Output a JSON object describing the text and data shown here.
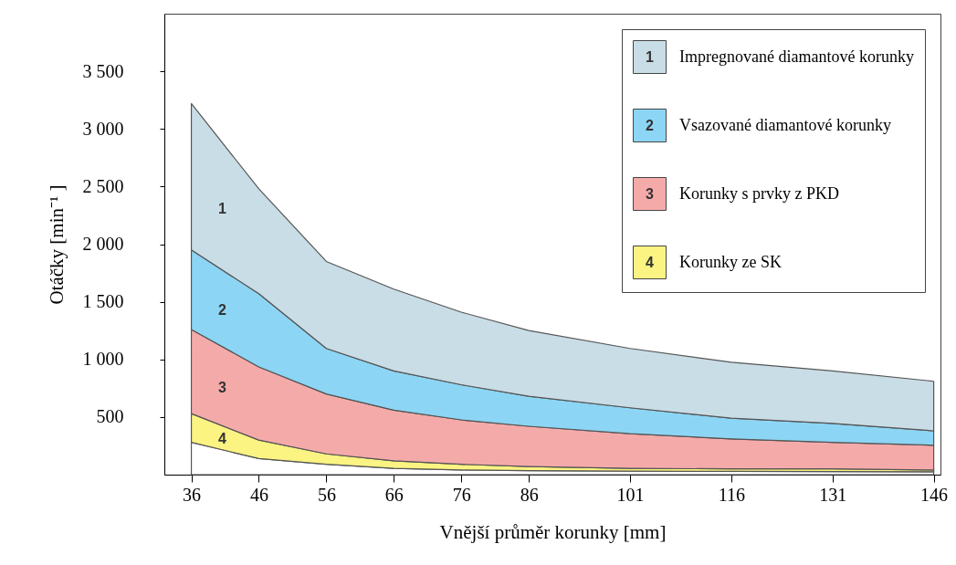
{
  "chart_data": {
    "type": "area",
    "stacked": true,
    "xlabel": "Vnější průměr korunky [mm]",
    "ylabel": "Otáčky [min⁻¹ ]",
    "x": [
      36,
      46,
      56,
      66,
      76,
      86,
      101,
      116,
      131,
      146
    ],
    "series": [
      {
        "color": "#ffffff",
        "values": [
          280,
          140,
          90,
          55,
          40,
          35,
          30,
          28,
          26,
          25
        ]
      },
      {
        "name": "Korunky ze SK",
        "color": "#fbf382",
        "values": [
          250,
          160,
          90,
          65,
          50,
          35,
          25,
          22,
          24,
          15
        ]
      },
      {
        "name": "Korunky s prvky z PKD",
        "color": "#f5aaaa",
        "values": [
          730,
          635,
          520,
          440,
          385,
          350,
          300,
          260,
          230,
          215
        ]
      },
      {
        "name": "Vsazované diamantové korunky",
        "color": "#8dd5f4",
        "values": [
          690,
          635,
          395,
          340,
          305,
          260,
          225,
          180,
          165,
          125
        ]
      },
      {
        "name": "Impregnované diamantové korunky",
        "color": "#c9dde6",
        "values": [
          1270,
          910,
          755,
          710,
          630,
          570,
          515,
          485,
          455,
          430
        ]
      }
    ],
    "annotations": [
      "1",
      "2",
      "3",
      "4"
    ],
    "xlim": [
      32,
      147
    ],
    "xticks": [
      36,
      46,
      56,
      66,
      76,
      86,
      101,
      116,
      131,
      146
    ],
    "ylim": [
      0,
      4000
    ],
    "yticks": [
      500,
      {
        "value": 1000,
        "label": "1 000"
      },
      {
        "value": 1500,
        "label": "1 500"
      },
      {
        "value": 2000,
        "label": "2 000"
      },
      {
        "value": 2500,
        "label": "2 500"
      },
      {
        "value": 3000,
        "label": "3 000"
      },
      {
        "value": 3500,
        "label": "3 500"
      }
    ],
    "grid": false,
    "legend": "top right"
  }
}
